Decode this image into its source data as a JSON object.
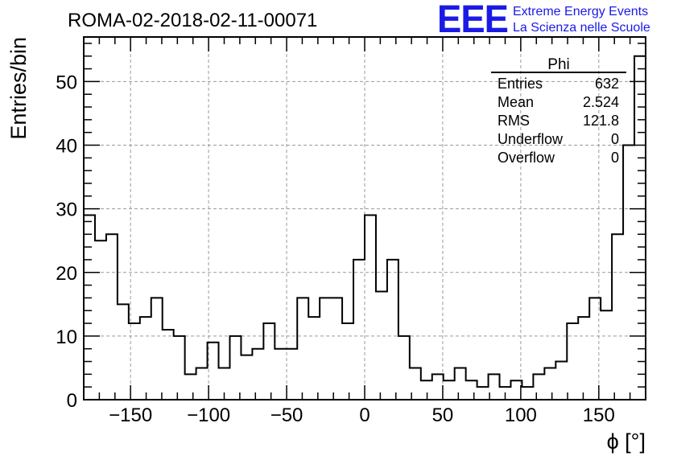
{
  "header": {
    "run_title": "ROMA-02-2018-02-11-00071",
    "logo_text": "EEE",
    "logo_line1": "Extreme Energy Events",
    "logo_line2": "La Scienza nelle Scuole",
    "logo_color": "#1a1ae6"
  },
  "stats_box": {
    "title": "Phi",
    "rows": [
      {
        "label": "Entries",
        "value": "632"
      },
      {
        "label": "Mean",
        "value": "2.524"
      },
      {
        "label": "RMS",
        "value": "121.8"
      },
      {
        "label": "Underflow",
        "value": "0"
      },
      {
        "label": "Overflow",
        "value": "0"
      }
    ]
  },
  "chart_data": {
    "type": "bar",
    "style": "step-histogram",
    "xlabel": "ϕ [°]",
    "ylabel": "Entries/bin",
    "xlim": [
      -180,
      180
    ],
    "ylim": [
      0,
      57
    ],
    "bin_width": 7.2,
    "bin_edges_start": -180,
    "grid": true,
    "grid_style": "dashed",
    "x_ticks": [
      {
        "value": -150,
        "label": "−150"
      },
      {
        "value": -100,
        "label": "−100"
      },
      {
        "value": -50,
        "label": "−50"
      },
      {
        "value": 0,
        "label": "0"
      },
      {
        "value": 50,
        "label": "50"
      },
      {
        "value": 100,
        "label": "100"
      },
      {
        "value": 150,
        "label": "150"
      }
    ],
    "y_ticks": [
      {
        "value": 0,
        "label": "0"
      },
      {
        "value": 10,
        "label": "10"
      },
      {
        "value": 20,
        "label": "20"
      },
      {
        "value": 30,
        "label": "30"
      },
      {
        "value": 40,
        "label": "40"
      },
      {
        "value": 50,
        "label": "50"
      }
    ],
    "values": [
      29,
      25,
      26,
      15,
      12,
      13,
      16,
      11,
      10,
      4,
      5,
      9,
      5,
      10,
      7,
      8,
      12,
      8,
      8,
      16,
      13,
      16,
      16,
      12,
      22,
      29,
      17,
      22,
      10,
      5,
      3,
      4,
      3,
      5,
      3,
      2,
      4,
      2,
      3,
      2,
      4,
      5,
      6,
      12,
      13,
      16,
      14,
      26,
      40,
      54
    ],
    "line_color": "#000000",
    "grid_color": "#9a9a9a"
  }
}
